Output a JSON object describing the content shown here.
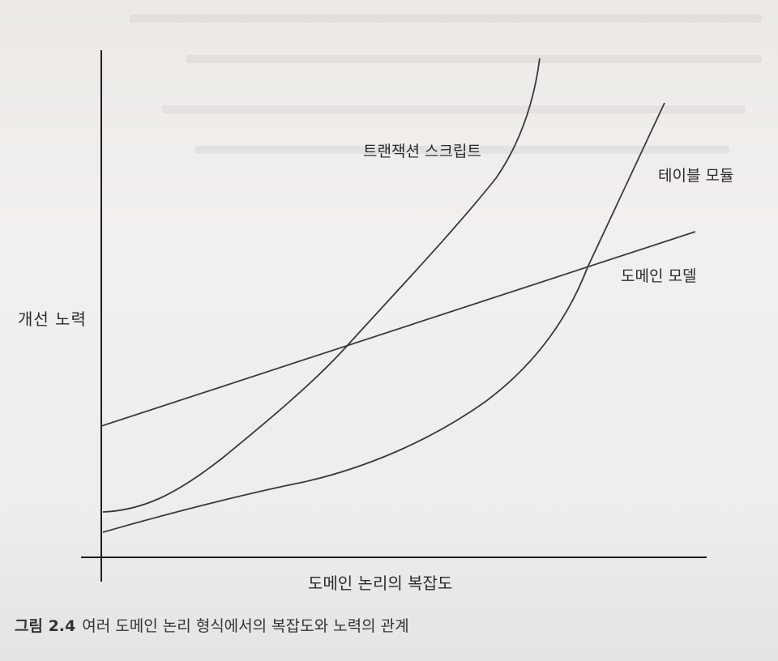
{
  "figure": {
    "number": "그림 2.4",
    "caption": "여러 도메인 논리 형식에서의 복잡도와 노력의 관계"
  },
  "chart_data": {
    "type": "line",
    "xlabel": "도메인 논리의 복잡도",
    "ylabel": "개선 노력",
    "series": [
      {
        "name": "트랜잭션 스크립트",
        "shape": "exponential-steep",
        "color": "#3a3a3a"
      },
      {
        "name": "테이블 모듈",
        "shape": "exponential-gradual",
        "color": "#3a3a3a"
      },
      {
        "name": "도메인 모델",
        "shape": "linear",
        "color": "#3a3a3a"
      }
    ],
    "grid": false,
    "legend": "inline-labels"
  }
}
